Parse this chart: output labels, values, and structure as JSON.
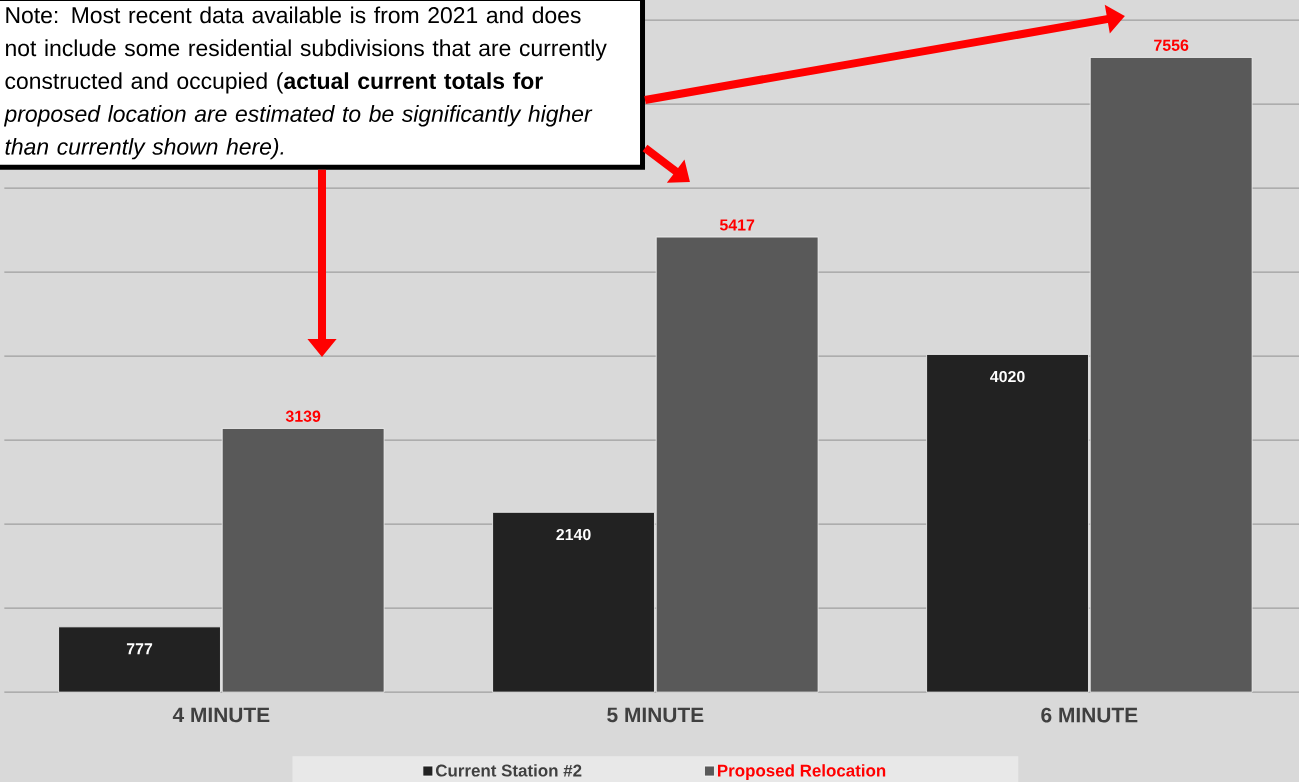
{
  "chart_data": {
    "type": "bar",
    "categories": [
      "4 MINUTE",
      "5 MINUTE",
      "6 MINUTE"
    ],
    "series": [
      {
        "name": "Current Station #2",
        "color": "#222222",
        "values": [
          777,
          2140,
          4020
        ]
      },
      {
        "name": "Proposed Relocation",
        "color": "#595959",
        "values": [
          3139,
          5417,
          7556
        ]
      }
    ],
    "ylim": [
      0,
      8000
    ],
    "yticks": [
      {
        "value": 0,
        "label": null
      },
      {
        "value": 1000,
        "label": null
      },
      {
        "value": 2000,
        "label": null
      },
      {
        "value": 3000,
        "label": null
      },
      {
        "value": 4000,
        "label": null
      },
      {
        "value": 5000,
        "label": null
      },
      {
        "value": 6000,
        "label": null
      },
      {
        "value": 7000,
        "label": null
      },
      {
        "value": 8000,
        "label": null
      }
    ],
    "tick_labels": "x",
    "grid": "y",
    "legend": "bottom",
    "data_labels": true,
    "annotations": [
      "Note: Most recent data available is from 2021 and does not include some residential subdivisions that are currently constructed and occupied (**actual current totals for** *proposed location* *are estimated to be significantly higher than currently shown here).*"
    ]
  }
}
